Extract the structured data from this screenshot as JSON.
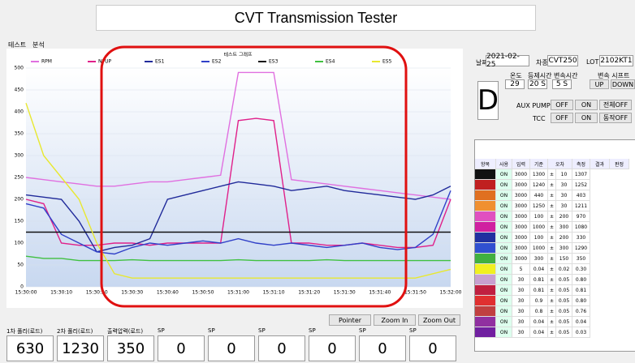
{
  "window": {
    "title": "CVT Transmission Tester",
    "tabs": [
      "테스트",
      "분석"
    ]
  },
  "chart_data": {
    "type": "line",
    "title": "테스트 그래프",
    "categories": [
      "15:30:00",
      null,
      "15:30:10",
      null,
      "15:30:20",
      null,
      "15:30:30",
      null,
      "15:30:40",
      null,
      "15:30:50",
      null,
      "15:31:00",
      null,
      "15:31:10",
      null,
      "15:31:20",
      null,
      "15:31:30",
      null,
      "15:31:40",
      null,
      "15:31:50",
      null,
      "15:32:00"
    ],
    "ylim": [
      0,
      500
    ],
    "yticks": [
      0,
      50,
      100,
      150,
      200,
      250,
      300,
      350,
      400,
      450,
      500
    ],
    "grid": true,
    "series": [
      {
        "name": "RPM",
        "color": "#e070e0",
        "values": [
          250,
          245,
          240,
          235,
          230,
          230,
          235,
          240,
          240,
          245,
          250,
          255,
          490,
          490,
          490,
          245,
          240,
          235,
          230,
          225,
          220,
          215,
          210,
          205,
          200
        ]
      },
      {
        "name": "NPUP",
        "color": "#e0208a",
        "values": [
          200,
          190,
          100,
          95,
          95,
          100,
          100,
          95,
          100,
          100,
          100,
          100,
          380,
          385,
          380,
          100,
          100,
          95,
          95,
          100,
          95,
          90,
          90,
          95,
          200
        ]
      },
      {
        "name": "ES1",
        "color": "#202a9a",
        "values": [
          210,
          205,
          200,
          150,
          80,
          90,
          95,
          110,
          200,
          210,
          220,
          230,
          240,
          235,
          230,
          220,
          225,
          230,
          220,
          215,
          210,
          205,
          200,
          210,
          230
        ]
      },
      {
        "name": "ES2",
        "color": "#3040c8",
        "values": [
          190,
          180,
          120,
          100,
          80,
          75,
          90,
          100,
          95,
          100,
          105,
          100,
          110,
          100,
          95,
          100,
          95,
          90,
          95,
          100,
          90,
          85,
          90,
          120,
          220
        ]
      },
      {
        "name": "ES3",
        "color": "#111111",
        "values": [
          125,
          125,
          125,
          125,
          125,
          125,
          125,
          125,
          125,
          125,
          125,
          125,
          125,
          125,
          125,
          125,
          125,
          125,
          125,
          125,
          125,
          125,
          125,
          125,
          125
        ]
      },
      {
        "name": "ES4",
        "color": "#40c040",
        "values": [
          70,
          65,
          65,
          60,
          60,
          60,
          62,
          60,
          60,
          60,
          60,
          60,
          62,
          60,
          60,
          60,
          60,
          62,
          60,
          60,
          60,
          60,
          60,
          60,
          60
        ]
      },
      {
        "name": "ES5",
        "color": "#e8e830",
        "values": [
          420,
          300,
          250,
          200,
          100,
          30,
          20,
          20,
          20,
          20,
          20,
          20,
          20,
          20,
          20,
          20,
          20,
          20,
          20,
          20,
          20,
          20,
          20,
          30,
          40
        ]
      }
    ]
  },
  "controls": {
    "buttons": [
      "Pointer",
      "Zoom In",
      "Zoom Out"
    ]
  },
  "gauges": [
    {
      "label": "1차 풀리(로드)",
      "value": 630
    },
    {
      "label": "2차 풀리(로드)",
      "value": 1230
    },
    {
      "label": "출력압력(로드)",
      "value": 350
    },
    {
      "label": "SP",
      "value": 0
    },
    {
      "label": "SP",
      "value": 0
    },
    {
      "label": "SP",
      "value": 0
    },
    {
      "label": "SP",
      "value": 0
    },
    {
      "label": "SP",
      "value": 0
    },
    {
      "label": "SP",
      "value": 0
    }
  ],
  "panel": {
    "date_label": "날짜",
    "date": "2021-02-25",
    "model_label": "차종",
    "model": "CVT250",
    "lot_label": "LOT",
    "lot": "2102KT1",
    "gear": "D",
    "temp_label": "온도",
    "temp": 29,
    "hold_label": "등제시간",
    "hold": "20 S",
    "shift_label": "변속시간",
    "shift": "5 S",
    "shift_sel_label": "변속 시프트",
    "up": "UP",
    "down": "DOWN",
    "aux_label": "AUX PUMP",
    "tcc_label": "TCC",
    "off": "OFF",
    "on": "ON",
    "all_off": "전체OFF",
    "act_off": "동작OFF"
  },
  "table": {
    "header": [
      "항목",
      "사용",
      "입력",
      "기준",
      "오차",
      "측정",
      "결과",
      "판정"
    ],
    "row_colors": [
      "#111111",
      "#c02020",
      "#e07020",
      "#f09030",
      "#e050c0",
      "#d020a0",
      "#2030a0",
      "#3050d0",
      "#40b040",
      "#f0f020",
      "#c8a0d0",
      "#c02040",
      "#e03030",
      "#c04040",
      "#9030a0",
      "#7020a0"
    ],
    "rows": [
      [
        "ON",
        "3000",
        "1300",
        "±",
        "10",
        "1307"
      ],
      [
        "ON",
        "3000",
        "1240",
        "±",
        "30",
        "1252"
      ],
      [
        "ON",
        "3000",
        "440",
        "±",
        "30",
        "403"
      ],
      [
        "ON",
        "3000",
        "1250",
        "±",
        "30",
        "1211"
      ],
      [
        "ON",
        "3000",
        "100",
        "±",
        "200",
        "970"
      ],
      [
        "ON",
        "3000",
        "1000",
        "±",
        "300",
        "1080"
      ],
      [
        "ON",
        "3000",
        "100",
        "±",
        "200",
        "330"
      ],
      [
        "ON",
        "3000",
        "1000",
        "±",
        "300",
        "1290"
      ],
      [
        "ON",
        "3000",
        "300",
        "±",
        "150",
        "350"
      ],
      [
        "ON",
        "5",
        "0.04",
        "±",
        "0.02",
        "0.30"
      ],
      [
        "ON",
        "30",
        "0.81",
        "±",
        "0.05",
        "0.80"
      ],
      [
        "ON",
        "30",
        "0.81",
        "±",
        "0.05",
        "0.81"
      ],
      [
        "ON",
        "30",
        "0.9",
        "±",
        "0.05",
        "0.80"
      ],
      [
        "ON",
        "30",
        "0.8",
        "±",
        "0.05",
        "0.76"
      ],
      [
        "ON",
        "30",
        "0.04",
        "±",
        "0.05",
        "0.04"
      ],
      [
        "ON",
        "30",
        "0.04",
        "±",
        "0.05",
        "0.03"
      ]
    ]
  }
}
